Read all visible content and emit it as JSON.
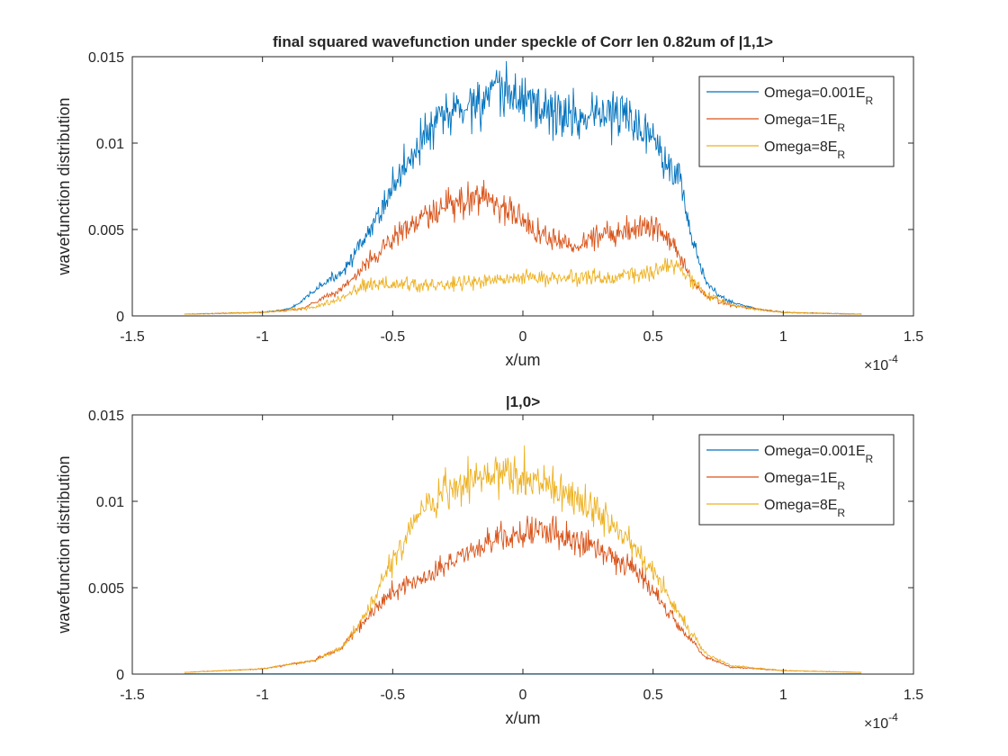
{
  "chart_data": [
    {
      "type": "line",
      "title": "final squared wavefunction under speckle of Corr len 0.82um of |1,1>",
      "xlabel": "x/um",
      "ylabel": "wavefunction distribution",
      "x_exponent_label": "×10",
      "x_exponent_power": "-4",
      "xlim": [
        -1.5,
        1.5
      ],
      "ylim": [
        0,
        0.015
      ],
      "x_scale": 0.0001,
      "x_data_range": [
        -1.3,
        1.3
      ],
      "x_ticks": [
        -1.5,
        -1,
        -0.5,
        0,
        0.5,
        1,
        1.5
      ],
      "x_tick_labels": [
        "-1.5",
        "-1",
        "-0.5",
        "0",
        "0.5",
        "1",
        "1.5"
      ],
      "y_ticks": [
        0,
        0.005,
        0.01,
        0.015
      ],
      "y_tick_labels": [
        "0",
        "0.005",
        "0.01",
        "0.015"
      ],
      "grid": false,
      "legend_position": "top-right",
      "series": [
        {
          "name_main": "Omega=0.001E",
          "name_sub": "R",
          "color": "#0072BD",
          "envelope_x": [
            -1.3,
            -1.0,
            -0.9,
            -0.85,
            -0.8,
            -0.7,
            -0.6,
            -0.5,
            -0.4,
            -0.3,
            -0.2,
            -0.1,
            0,
            0.1,
            0.2,
            0.3,
            0.4,
            0.5,
            0.6,
            0.65,
            0.7,
            0.75,
            0.8,
            0.9,
            1.0,
            1.3
          ],
          "envelope_y": [
            0.0001,
            0.0002,
            0.0004,
            0.0008,
            0.0015,
            0.0025,
            0.0045,
            0.0075,
            0.01,
            0.0115,
            0.0123,
            0.0128,
            0.0127,
            0.0118,
            0.0115,
            0.0118,
            0.0115,
            0.0105,
            0.008,
            0.0045,
            0.002,
            0.0012,
            0.0008,
            0.0004,
            0.0002,
            0.0001
          ],
          "noise": 0.12
        },
        {
          "name_main": "Omega=1E",
          "name_sub": "R",
          "color": "#D95319",
          "envelope_x": [
            -1.3,
            -1.0,
            -0.85,
            -0.8,
            -0.7,
            -0.6,
            -0.5,
            -0.4,
            -0.3,
            -0.2,
            -0.15,
            -0.1,
            0,
            0.1,
            0.2,
            0.3,
            0.4,
            0.5,
            0.55,
            0.6,
            0.65,
            0.7,
            0.8,
            1.0,
            1.3
          ],
          "envelope_y": [
            0.0001,
            0.0002,
            0.0004,
            0.0008,
            0.0015,
            0.003,
            0.0045,
            0.0055,
            0.0062,
            0.0068,
            0.007,
            0.0065,
            0.0055,
            0.0045,
            0.004,
            0.0048,
            0.005,
            0.0052,
            0.005,
            0.0035,
            0.002,
            0.0012,
            0.0006,
            0.0002,
            0.0001
          ],
          "noise": 0.15
        },
        {
          "name_main": "Omega=8E",
          "name_sub": "R",
          "color": "#EDB120",
          "envelope_x": [
            -1.3,
            -1.0,
            -0.8,
            -0.7,
            -0.6,
            -0.5,
            -0.4,
            -0.3,
            -0.2,
            -0.1,
            0,
            0.1,
            0.2,
            0.3,
            0.4,
            0.5,
            0.55,
            0.6,
            0.65,
            0.7,
            0.8,
            1.0,
            1.3
          ],
          "envelope_y": [
            0.0001,
            0.0002,
            0.0005,
            0.001,
            0.0018,
            0.0018,
            0.0018,
            0.0018,
            0.002,
            0.002,
            0.0022,
            0.0022,
            0.0022,
            0.0022,
            0.0023,
            0.0025,
            0.003,
            0.0028,
            0.002,
            0.0012,
            0.0006,
            0.0002,
            0.0001
          ],
          "noise": 0.2
        }
      ]
    },
    {
      "type": "line",
      "title": "|1,0>",
      "xlabel": "x/um",
      "ylabel": "wavefunction distribution",
      "x_exponent_label": "×10",
      "x_exponent_power": "-4",
      "xlim": [
        -1.5,
        1.5
      ],
      "ylim": [
        0,
        0.015
      ],
      "x_scale": 0.0001,
      "x_data_range": [
        -1.3,
        1.3
      ],
      "x_ticks": [
        -1.5,
        -1,
        -0.5,
        0,
        0.5,
        1,
        1.5
      ],
      "x_tick_labels": [
        "-1.5",
        "-1",
        "-0.5",
        "0",
        "0.5",
        "1",
        "1.5"
      ],
      "y_ticks": [
        0,
        0.005,
        0.01,
        0.015
      ],
      "y_tick_labels": [
        "0",
        "0.005",
        "0.01",
        "0.015"
      ],
      "grid": false,
      "legend_position": "top-right",
      "series": [
        {
          "name_main": "Omega=0.001E",
          "name_sub": "R",
          "color": "#0072BD",
          "envelope_x": [
            -1.3,
            1.3
          ],
          "envelope_y": [
            2e-05,
            2e-05
          ],
          "noise": 0
        },
        {
          "name_main": "Omega=1E",
          "name_sub": "R",
          "color": "#D95319",
          "envelope_x": [
            -1.3,
            -1.0,
            -0.8,
            -0.7,
            -0.6,
            -0.5,
            -0.4,
            -0.3,
            -0.2,
            -0.1,
            0,
            0.1,
            0.2,
            0.3,
            0.4,
            0.5,
            0.6,
            0.7,
            0.8,
            1.0,
            1.3
          ],
          "envelope_y": [
            0.0001,
            0.0003,
            0.0008,
            0.0015,
            0.0032,
            0.0048,
            0.0055,
            0.0062,
            0.0072,
            0.0078,
            0.0082,
            0.0082,
            0.0078,
            0.0072,
            0.0065,
            0.0048,
            0.0028,
            0.001,
            0.0004,
            0.0002,
            0.0001
          ],
          "noise": 0.1
        },
        {
          "name_main": "Omega=8E",
          "name_sub": "R",
          "color": "#EDB120",
          "envelope_x": [
            -1.3,
            -1.0,
            -0.8,
            -0.7,
            -0.6,
            -0.5,
            -0.4,
            -0.3,
            -0.2,
            -0.1,
            0,
            0.1,
            0.2,
            0.3,
            0.4,
            0.5,
            0.6,
            0.7,
            0.8,
            1.0,
            1.3
          ],
          "envelope_y": [
            0.0001,
            0.0003,
            0.0008,
            0.0015,
            0.0035,
            0.0065,
            0.009,
            0.0105,
            0.0112,
            0.0115,
            0.0115,
            0.011,
            0.0102,
            0.0092,
            0.0078,
            0.006,
            0.0035,
            0.0012,
            0.0005,
            0.0002,
            0.0001
          ],
          "noise": 0.1
        }
      ]
    }
  ]
}
